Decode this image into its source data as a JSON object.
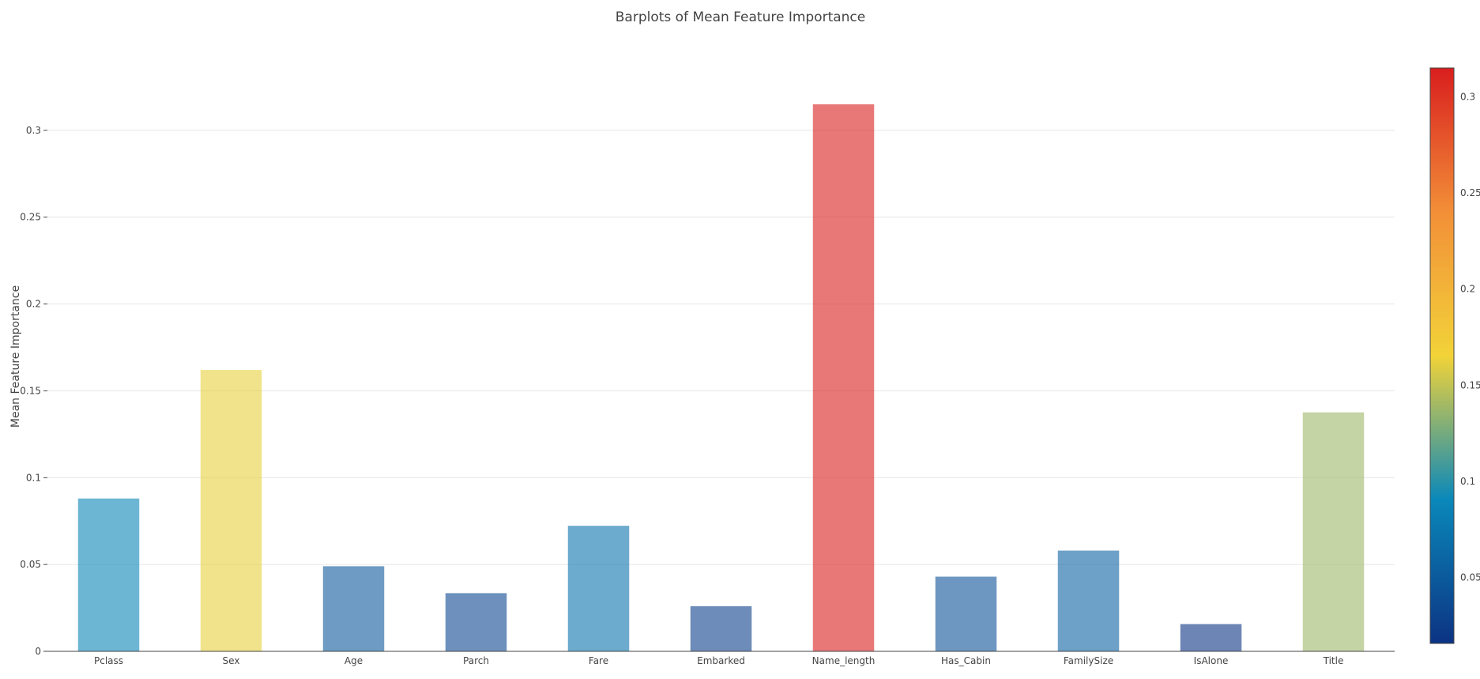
{
  "chart_data": {
    "type": "bar",
    "title": "Barplots of Mean Feature Importance",
    "xlabel": "",
    "ylabel": "Mean Feature Importance",
    "categories": [
      "Pclass",
      "Sex",
      "Age",
      "Parch",
      "Fare",
      "Embarked",
      "Name_length",
      "Has_Cabin",
      "FamilySize",
      "IsAlone",
      "Title"
    ],
    "values": [
      0.088,
      0.162,
      0.049,
      0.0335,
      0.0723,
      0.026,
      0.315,
      0.043,
      0.058,
      0.0157,
      0.1376
    ],
    "ylim": [
      0,
      0.335
    ],
    "yticks": [
      0,
      0.05,
      0.1,
      0.15,
      0.2,
      0.25,
      0.3
    ],
    "ytick_labels": [
      "0",
      "0.05",
      "0.1",
      "0.15",
      "0.2",
      "0.25",
      "0.3"
    ],
    "grid": true,
    "bar_opacity": 0.6,
    "colorscale": "Portland",
    "colorbar": {
      "range": [
        0.0157,
        0.315
      ],
      "ticks": [
        0.05,
        0.1,
        0.15,
        0.2,
        0.25,
        0.3
      ],
      "tick_labels": [
        "0.05",
        "0.1",
        "0.15",
        "0.2",
        "0.25",
        "0.3"
      ],
      "colors": [
        "#0c3383",
        "#0a88ba",
        "#f2d338",
        "#f28f38",
        "#d91e1e"
      ],
      "placement": "right"
    }
  }
}
